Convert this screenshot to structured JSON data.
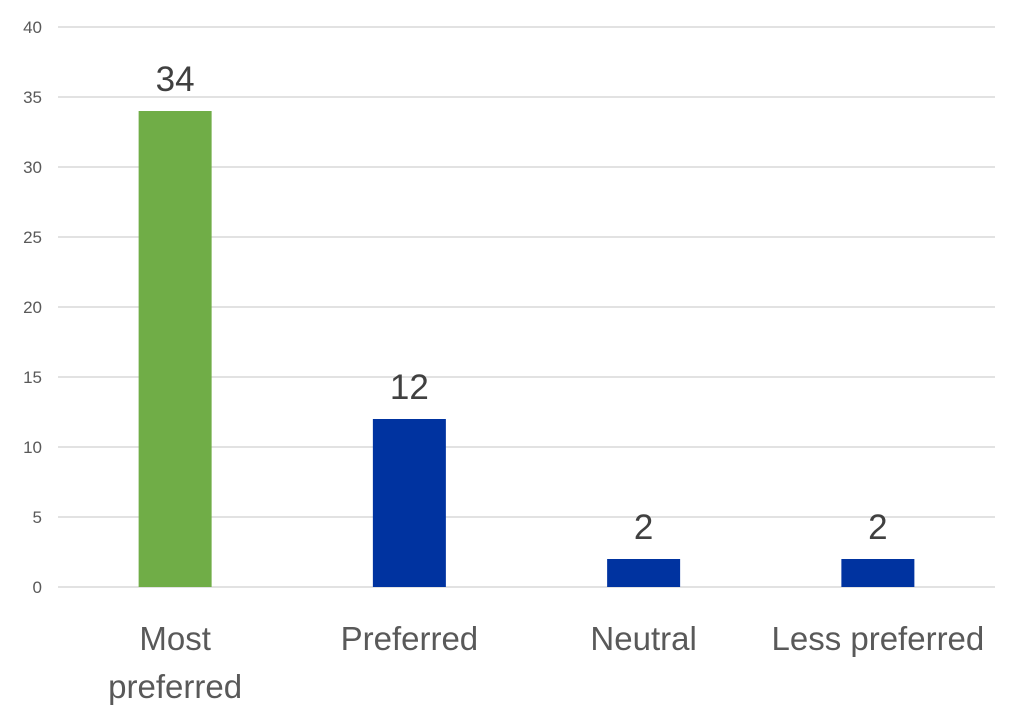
{
  "chart_data": {
    "type": "bar",
    "categories": [
      [
        "Most",
        "preferred"
      ],
      [
        "Preferred"
      ],
      [
        "Neutral"
      ],
      [
        "Less preferred"
      ]
    ],
    "values": [
      34,
      12,
      2,
      2
    ],
    "data_labels": [
      "34",
      "12",
      "2",
      "2"
    ],
    "ylim": [
      0,
      40
    ],
    "yticks": [
      0,
      5,
      10,
      15,
      20,
      25,
      30,
      35,
      40
    ],
    "ytick_labels": [
      "0",
      "5",
      "10",
      "15",
      "20",
      "25",
      "30",
      "35",
      "40"
    ],
    "grid": true,
    "legend": "none",
    "colors": {
      "highlight": "#70ad47",
      "default": "#0033a0",
      "grid": "#d9d9d9",
      "tick_text": "#595959",
      "label_text": "#404040"
    },
    "bar_colors": [
      "#70ad47",
      "#0033a0",
      "#0033a0",
      "#0033a0"
    ]
  }
}
